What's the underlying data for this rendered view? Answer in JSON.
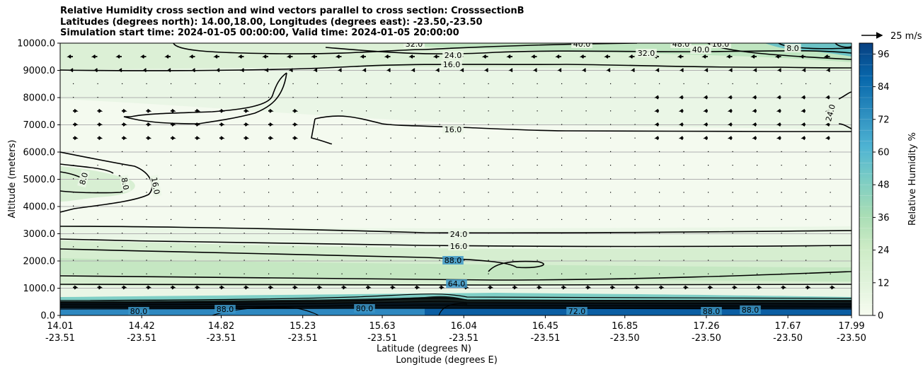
{
  "title_lines": [
    "Relative Humidity cross section and wind vectors parallel to cross section: CrosssectionB",
    "Latitudes (degrees north): 14.00,18.00, Longitudes (degrees east): -23.50,-23.50",
    "Simulation start time: 2024-01-05 00:00:00, Valid time: 2024-01-05 20:00:00"
  ],
  "chart_data": {
    "type": "contour",
    "title": "Relative Humidity cross section and wind vectors parallel to cross section: CrosssectionB",
    "ylabel": "Altitude (meters)",
    "xlabel_lat": "Latitude (degrees N)",
    "xlabel_lon": "Longitude (degrees E)",
    "ylim": [
      0,
      10000
    ],
    "y_ticks": [
      "0.0",
      "1000.0",
      "2000.0",
      "3000.0",
      "4000.0",
      "5000.0",
      "6000.0",
      "7000.0",
      "8000.0",
      "9000.0",
      "10000.0"
    ],
    "x_ticks": [
      {
        "lat": "14.01",
        "lon": "-23.51"
      },
      {
        "lat": "14.42",
        "lon": "-23.51"
      },
      {
        "lat": "14.82",
        "lon": "-23.51"
      },
      {
        "lat": "15.23",
        "lon": "-23.51"
      },
      {
        "lat": "15.63",
        "lon": "-23.51"
      },
      {
        "lat": "16.04",
        "lon": "-23.51"
      },
      {
        "lat": "16.45",
        "lon": "-23.51"
      },
      {
        "lat": "16.85",
        "lon": "-23.50"
      },
      {
        "lat": "17.26",
        "lon": "-23.50"
      },
      {
        "lat": "17.67",
        "lon": "-23.50"
      },
      {
        "lat": "17.99",
        "lon": "-23.50"
      }
    ],
    "grid": "horizontal",
    "colorbar": {
      "label": "Relative Humidity %",
      "ticks": [
        "0",
        "12",
        "24",
        "36",
        "48",
        "60",
        "72",
        "84",
        "96"
      ],
      "range": [
        0,
        100
      ],
      "colormap": "GnBu",
      "colors": [
        "#f7fcf0",
        "#e0f3db",
        "#ccebc5",
        "#a8ddb5",
        "#7bccc4",
        "#4eb3d3",
        "#2b8cbe",
        "#0868ac",
        "#084081"
      ]
    },
    "quiver_key": "25 m/s",
    "contour_labels": [
      {
        "text": "32.0"
      },
      {
        "text": "24.0"
      },
      {
        "text": "16.0"
      },
      {
        "text": "40.0"
      },
      {
        "text": "32.0"
      },
      {
        "text": "48.0"
      },
      {
        "text": "40.0"
      },
      {
        "text": "16.0"
      },
      {
        "text": "8.0"
      },
      {
        "text": "24.0"
      },
      {
        "text": "16.0"
      },
      {
        "text": "8.0"
      },
      {
        "text": "8.0"
      },
      {
        "text": "16.0"
      },
      {
        "text": "24.0"
      },
      {
        "text": "16.0"
      },
      {
        "text": "88.0"
      },
      {
        "text": "64.0"
      },
      {
        "text": "72.0"
      },
      {
        "text": "80.0"
      },
      {
        "text": "88.0"
      },
      {
        "text": "80.0"
      },
      {
        "text": "88.0"
      },
      {
        "text": "88.0"
      }
    ]
  }
}
